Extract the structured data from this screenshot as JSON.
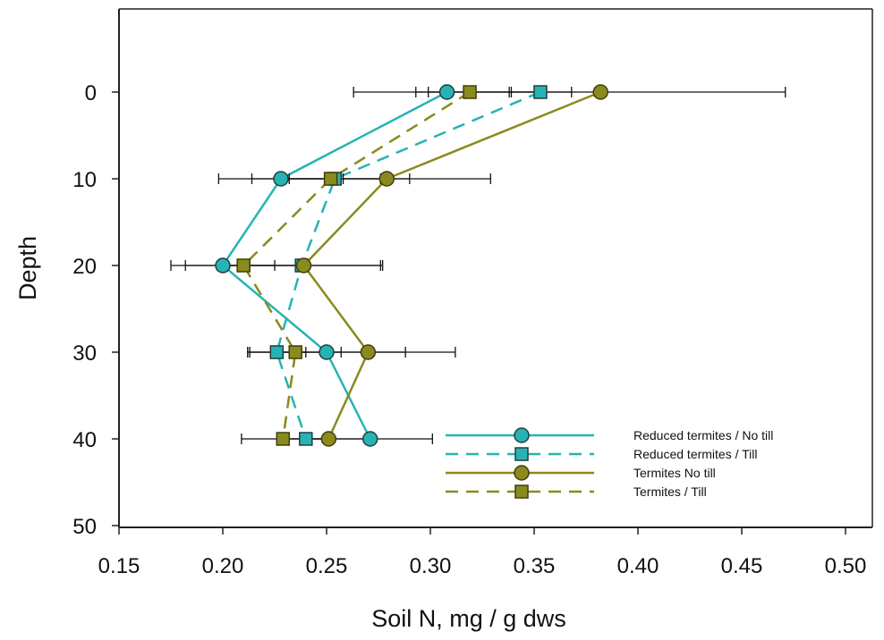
{
  "chart_data": {
    "type": "line",
    "orientation": "horizontal-profile",
    "xlabel": "Soil N, mg / g dws",
    "ylabel": "Depth",
    "xlim": [
      0.15,
      0.5
    ],
    "ylim": [
      50,
      -10
    ],
    "x_ticks": [
      "0.15",
      "0.20",
      "0.25",
      "0.30",
      "0.35",
      "0.40",
      "0.45",
      "0.50"
    ],
    "y_ticks": [
      "0",
      "10",
      "20",
      "30",
      "40",
      "50"
    ],
    "y_axis_inverted": true,
    "grid": false,
    "legend_position": "bottom-right",
    "depths": [
      0,
      10,
      20,
      30,
      40
    ],
    "series": [
      {
        "name": "Reduced termites / No till",
        "color": "#27b3b3",
        "line": "solid",
        "marker": "circle",
        "x": [
          0.308,
          0.228,
          0.2,
          0.25,
          0.271
        ],
        "error": [
          0.045,
          0.03,
          0.025,
          0.038,
          0.03
        ]
      },
      {
        "name": "Reduced termites / Till",
        "color": "#27b3b3",
        "line": "dashed",
        "marker": "square",
        "x": [
          0.353,
          0.254,
          0.238,
          0.226,
          0.24
        ],
        "error": [
          0.015,
          0.022,
          0.038,
          0.014,
          0.01
        ]
      },
      {
        "name": "Termites No till",
        "color": "#8a8a1e",
        "line": "solid",
        "marker": "circle",
        "x": [
          0.382,
          0.279,
          0.239,
          0.27,
          0.251
        ],
        "error": [
          0.089,
          0.05,
          0.038,
          0.042,
          0.02
        ]
      },
      {
        "name": "Termites / Till",
        "color": "#8a8a1e",
        "line": "dashed",
        "marker": "square",
        "x": [
          0.319,
          0.252,
          0.21,
          0.235,
          0.229
        ],
        "error": [
          0.02,
          0.038,
          0.028,
          0.022,
          0.02
        ]
      }
    ]
  }
}
